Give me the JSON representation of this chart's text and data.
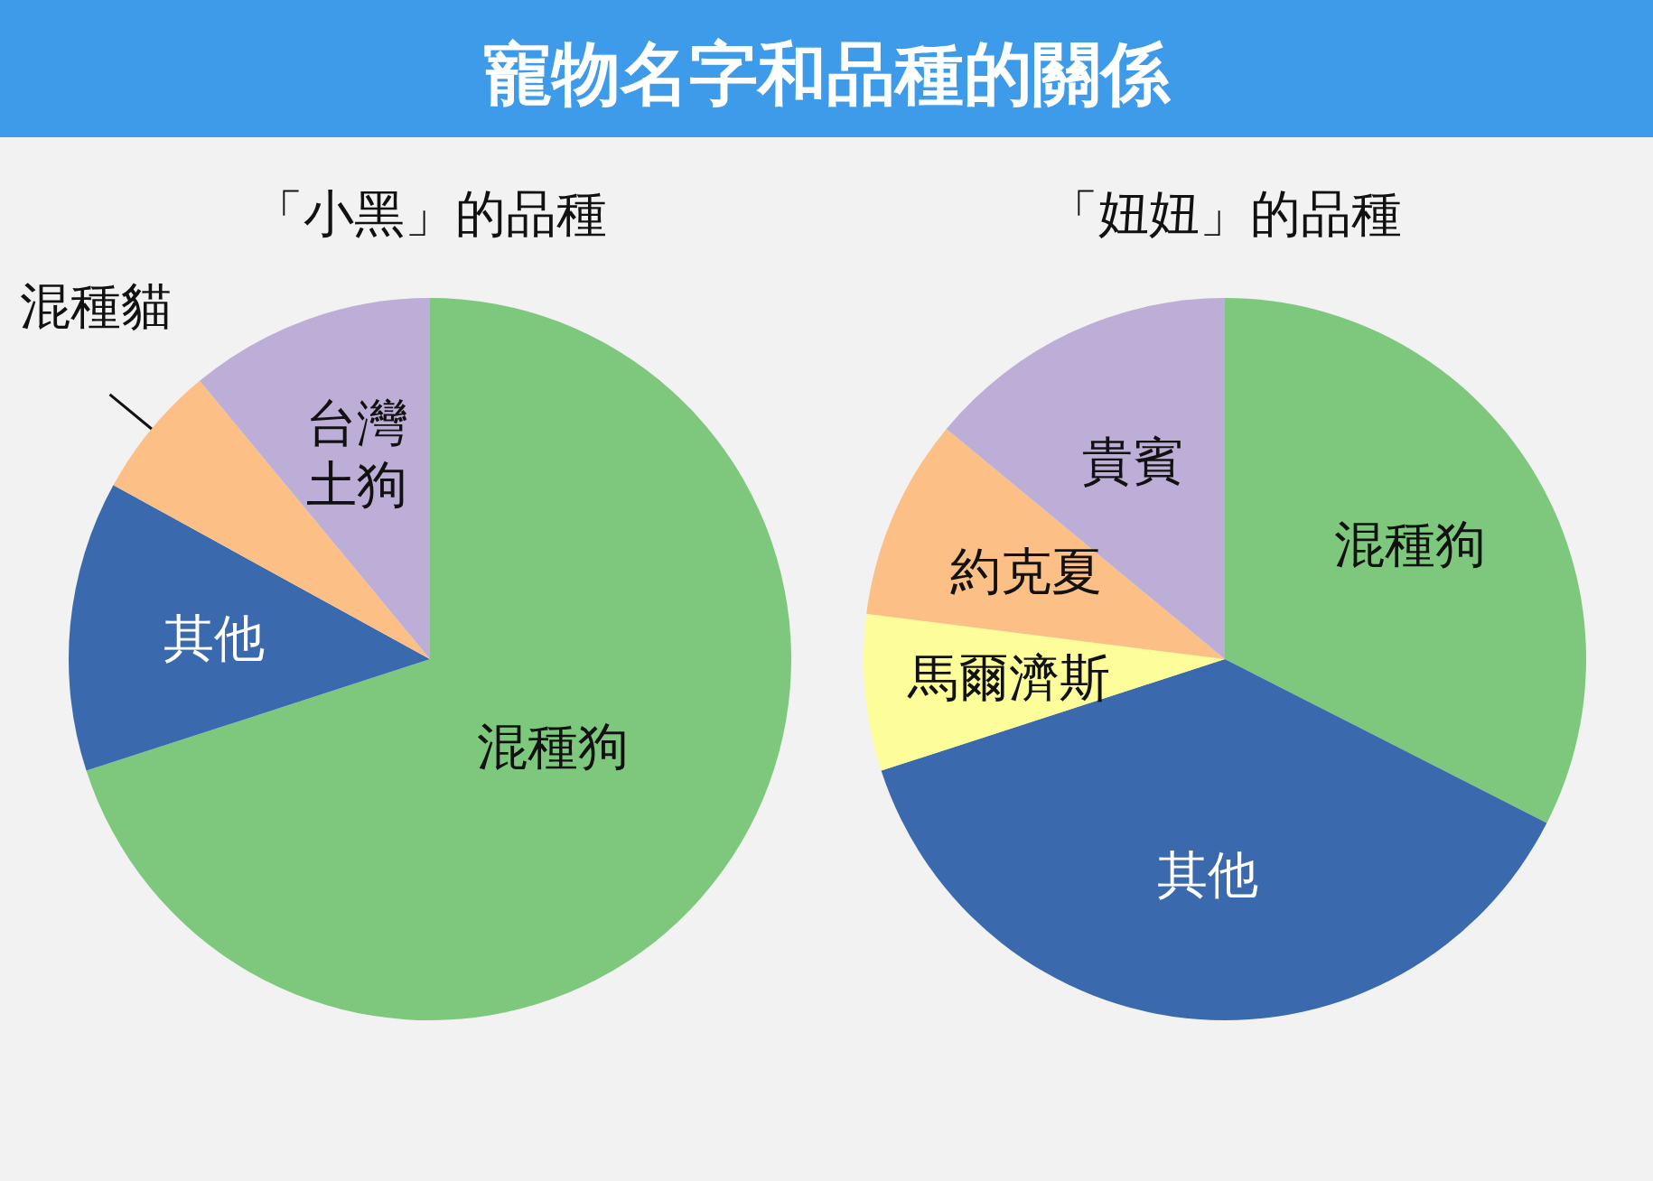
{
  "chart_data": [
    {
      "type": "pie",
      "title": "寵物名字和品種的關係",
      "subtitle": "「小黑」的品種",
      "categories": [
        "混種狗",
        "其他",
        "混種貓",
        "台灣土狗"
      ],
      "values": [
        70,
        13,
        6,
        11
      ],
      "colors": [
        "#7dc87d",
        "#3a6aad",
        "#fcbf85",
        "#bcaed6"
      ],
      "legend": false
    },
    {
      "type": "pie",
      "subtitle": "「妞妞」的品種",
      "categories": [
        "混種狗",
        "其他",
        "馬爾濟斯",
        "約克夏",
        "貴賓"
      ],
      "values": [
        32.5,
        37.5,
        7,
        9,
        14
      ],
      "colors": [
        "#7dc87d",
        "#3a6aad",
        "#fdfd99",
        "#fcbf85",
        "#bcaed6"
      ],
      "legend": false
    }
  ]
}
